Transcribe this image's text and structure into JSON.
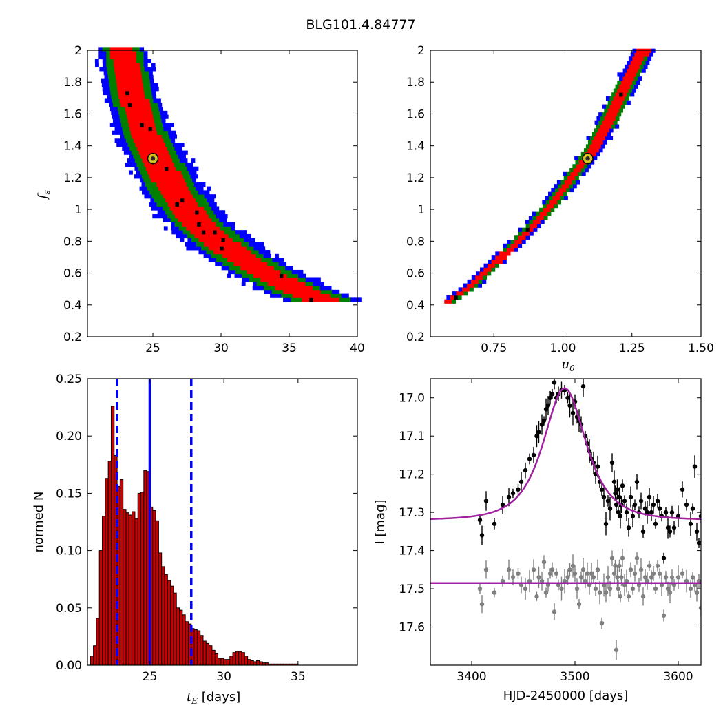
{
  "figure": {
    "title": "BLG101.4.84777"
  },
  "chart_data": [
    {
      "id": "fs-vs-tE",
      "type": "heatmap",
      "xlabel": "",
      "ylabel": "f_s",
      "ylabel_main": "f",
      "ylabel_sub": "s",
      "xlim": [
        20.2,
        40
      ],
      "ylim": [
        0.2,
        2.0
      ],
      "xticks": [
        25,
        30,
        35,
        40
      ],
      "yticks": [
        0.2,
        0.4,
        0.6,
        0.8,
        1.0,
        1.2,
        1.4,
        1.6,
        1.8,
        2.0
      ],
      "colors": {
        "outer": "#0000ff",
        "middle": "#008000",
        "inner": "#ff0000",
        "peak": "#000000"
      },
      "band_centerline": [
        [
          22.6,
          2.0
        ],
        [
          23.4,
          1.7
        ],
        [
          24.3,
          1.45
        ],
        [
          25.1,
          1.32
        ],
        [
          26.3,
          1.12
        ],
        [
          27.8,
          0.93
        ],
        [
          29.5,
          0.8
        ],
        [
          31.5,
          0.67
        ],
        [
          33.5,
          0.57
        ],
        [
          35.5,
          0.48
        ],
        [
          37.2,
          0.42
        ]
      ],
      "band_halfwidth": {
        "inner": 1.1,
        "middle": 1.7,
        "outer": 2.3
      },
      "best_fit": {
        "x": 25.0,
        "y": 1.32
      },
      "marker_color": "#d4c21e"
    },
    {
      "id": "fs-vs-u0",
      "type": "heatmap",
      "xlabel": "u_0",
      "xlabel_main": "u",
      "xlabel_sub": "0",
      "ylabel": "",
      "xlim": [
        0.52,
        1.5
      ],
      "ylim": [
        0.2,
        2.0
      ],
      "xticks": [
        0.75,
        1.0,
        1.25,
        1.5
      ],
      "xtick_labels": [
        "0.75",
        "1.00",
        "1.25",
        "1.50"
      ],
      "yticks": [
        0.2,
        0.4,
        0.6,
        0.8,
        1.0,
        1.2,
        1.4,
        1.6,
        1.8,
        2.0
      ],
      "colors": {
        "outer": "#0000ff",
        "middle": "#008000",
        "inner": "#ff0000",
        "peak": "#000000"
      },
      "band_centerline": [
        [
          0.58,
          0.41
        ],
        [
          0.65,
          0.49
        ],
        [
          0.72,
          0.6
        ],
        [
          0.8,
          0.74
        ],
        [
          0.88,
          0.88
        ],
        [
          0.96,
          1.04
        ],
        [
          1.04,
          1.22
        ],
        [
          1.1,
          1.36
        ],
        [
          1.16,
          1.55
        ],
        [
          1.22,
          1.76
        ],
        [
          1.29,
          2.0
        ]
      ],
      "band_halfwidth": {
        "inner": 0.017,
        "middle": 0.026,
        "outer": 0.035
      },
      "best_fit": {
        "x": 1.09,
        "y": 1.32
      },
      "marker_color": "#d4c21e"
    },
    {
      "id": "tE-histogram",
      "type": "bar",
      "xlabel": "t_E [days]",
      "xlabel_main": "t",
      "xlabel_sub": "E",
      "xlabel_rest": " [days]",
      "ylabel": "normed N",
      "xlim": [
        20.8,
        39
      ],
      "ylim": [
        0,
        0.25
      ],
      "xticks": [
        25,
        30,
        35
      ],
      "yticks": [
        0.0,
        0.05,
        0.1,
        0.15,
        0.2,
        0.25
      ],
      "ytick_labels": [
        "0.00",
        "0.05",
        "0.10",
        "0.15",
        "0.20",
        "0.25"
      ],
      "bin_start": 21.0,
      "bin_width": 0.2,
      "values": [
        0.008,
        0.017,
        0.041,
        0.1,
        0.13,
        0.163,
        0.178,
        0.226,
        0.183,
        0.156,
        0.162,
        0.136,
        0.133,
        0.131,
        0.134,
        0.128,
        0.15,
        0.151,
        0.17,
        0.169,
        0.138,
        0.135,
        0.126,
        0.098,
        0.086,
        0.079,
        0.074,
        0.069,
        0.063,
        0.05,
        0.048,
        0.044,
        0.038,
        0.036,
        0.032,
        0.031,
        0.03,
        0.026,
        0.021,
        0.019,
        0.017,
        0.013,
        0.01,
        0.006,
        0.006,
        0.005,
        0.005,
        0.008,
        0.011,
        0.012,
        0.012,
        0.011,
        0.008,
        0.005,
        0.004,
        0.003,
        0.004,
        0.003,
        0.002,
        0.002,
        0.001,
        0.001,
        0.001,
        0.001,
        0.001,
        0.001,
        0.001,
        0.001,
        0.001,
        0.001
      ],
      "bar_color": "#cc0000",
      "median": 25.0,
      "lower": 22.8,
      "upper": 27.8,
      "line_color": "#0000ff"
    },
    {
      "id": "lightcurve",
      "type": "scatter",
      "xlabel": "HJD-2450000 [days]",
      "ylabel": "I [mag]",
      "xlim": [
        3360,
        3622
      ],
      "ylim": [
        17.7,
        16.95
      ],
      "xticks": [
        3400,
        3500,
        3600
      ],
      "yticks": [
        17.0,
        17.1,
        17.2,
        17.3,
        17.4,
        17.5,
        17.6
      ],
      "ytick_labels": [
        "17.0",
        "17.1",
        "17.2",
        "17.3",
        "17.4",
        "17.5",
        "17.6"
      ],
      "model": {
        "baseline": 17.32,
        "peak": 16.975,
        "t0": 3490,
        "tE": 25,
        "u0": 1.09
      },
      "residual_baseline": 17.485,
      "model_color": "#a020a0",
      "data_color": "#000000",
      "residual_color": "#808080",
      "data": [
        [
          3408,
          17.32
        ],
        [
          3410,
          17.36
        ],
        [
          3414,
          17.27
        ],
        [
          3422,
          17.33
        ],
        [
          3430,
          17.28
        ],
        [
          3436,
          17.26
        ],
        [
          3440,
          17.25
        ],
        [
          3445,
          17.24
        ],
        [
          3448,
          17.22
        ],
        [
          3452,
          17.19
        ],
        [
          3456,
          17.16
        ],
        [
          3460,
          17.15
        ],
        [
          3463,
          17.1
        ],
        [
          3465,
          17.09
        ],
        [
          3468,
          17.07
        ],
        [
          3470,
          17.06
        ],
        [
          3472,
          17.03
        ],
        [
          3474,
          17.02
        ],
        [
          3476,
          17.0
        ],
        [
          3478,
          16.99
        ],
        [
          3480,
          16.96
        ],
        [
          3482,
          17.0
        ],
        [
          3484,
          16.99
        ],
        [
          3487,
          16.98
        ],
        [
          3490,
          16.98
        ],
        [
          3493,
          17.0
        ],
        [
          3495,
          17.02
        ],
        [
          3498,
          17.04
        ],
        [
          3500,
          17.01
        ],
        [
          3502,
          17.05
        ],
        [
          3504,
          17.06
        ],
        [
          3506,
          17.07
        ],
        [
          3508,
          16.97
        ],
        [
          3510,
          17.1
        ],
        [
          3512,
          17.12
        ],
        [
          3514,
          17.14
        ],
        [
          3516,
          17.16
        ],
        [
          3518,
          17.17
        ],
        [
          3520,
          17.2
        ],
        [
          3522,
          17.18
        ],
        [
          3524,
          17.22
        ],
        [
          3526,
          17.24
        ],
        [
          3528,
          17.26
        ],
        [
          3530,
          17.33
        ],
        [
          3532,
          17.27
        ],
        [
          3534,
          17.29
        ],
        [
          3536,
          17.17
        ],
        [
          3538,
          17.22
        ],
        [
          3539,
          17.25
        ],
        [
          3540,
          17.28
        ],
        [
          3541,
          17.24
        ],
        [
          3542,
          17.3
        ],
        [
          3543,
          17.26
        ],
        [
          3544,
          17.31
        ],
        [
          3545,
          17.28
        ],
        [
          3546,
          17.23
        ],
        [
          3548,
          17.27
        ],
        [
          3550,
          17.3
        ],
        [
          3552,
          17.34
        ],
        [
          3554,
          17.26
        ],
        [
          3556,
          17.31
        ],
        [
          3558,
          17.28
        ],
        [
          3560,
          17.22
        ],
        [
          3562,
          17.3
        ],
        [
          3564,
          17.27
        ],
        [
          3566,
          17.35
        ],
        [
          3568,
          17.29
        ],
        [
          3570,
          17.3
        ],
        [
          3572,
          17.26
        ],
        [
          3574,
          17.3
        ],
        [
          3576,
          17.28
        ],
        [
          3578,
          17.33
        ],
        [
          3580,
          17.27
        ],
        [
          3582,
          17.29
        ],
        [
          3584,
          17.31
        ],
        [
          3586,
          17.42
        ],
        [
          3588,
          17.3
        ],
        [
          3590,
          17.34
        ],
        [
          3592,
          17.35
        ],
        [
          3594,
          17.3
        ],
        [
          3596,
          17.34
        ],
        [
          3600,
          17.31
        ],
        [
          3604,
          17.24
        ],
        [
          3608,
          17.28
        ],
        [
          3612,
          17.33
        ],
        [
          3614,
          17.29
        ],
        [
          3616,
          17.18
        ],
        [
          3618,
          17.35
        ],
        [
          3620,
          17.38
        ],
        [
          3622,
          17.31
        ]
      ],
      "residuals": [
        [
          3408,
          17.5
        ],
        [
          3410,
          17.54
        ],
        [
          3414,
          17.45
        ],
        [
          3422,
          17.51
        ],
        [
          3430,
          17.48
        ],
        [
          3436,
          17.45
        ],
        [
          3440,
          17.47
        ],
        [
          3445,
          17.46
        ],
        [
          3448,
          17.49
        ],
        [
          3452,
          17.5
        ],
        [
          3456,
          17.48
        ],
        [
          3460,
          17.45
        ],
        [
          3463,
          17.52
        ],
        [
          3465,
          17.47
        ],
        [
          3468,
          17.48
        ],
        [
          3470,
          17.43
        ],
        [
          3472,
          17.51
        ],
        [
          3474,
          17.49
        ],
        [
          3476,
          17.46
        ],
        [
          3478,
          17.45
        ],
        [
          3480,
          17.56
        ],
        [
          3482,
          17.46
        ],
        [
          3484,
          17.49
        ],
        [
          3487,
          17.5
        ],
        [
          3490,
          17.48
        ],
        [
          3493,
          17.47
        ],
        [
          3495,
          17.45
        ],
        [
          3498,
          17.44
        ],
        [
          3500,
          17.46
        ],
        [
          3502,
          17.5
        ],
        [
          3504,
          17.54
        ],
        [
          3506,
          17.47
        ],
        [
          3508,
          17.45
        ],
        [
          3510,
          17.48
        ],
        [
          3512,
          17.46
        ],
        [
          3514,
          17.49
        ],
        [
          3516,
          17.46
        ],
        [
          3518,
          17.47
        ],
        [
          3520,
          17.5
        ],
        [
          3522,
          17.45
        ],
        [
          3524,
          17.51
        ],
        [
          3526,
          17.59
        ],
        [
          3528,
          17.49
        ],
        [
          3530,
          17.51
        ],
        [
          3532,
          17.47
        ],
        [
          3534,
          17.5
        ],
        [
          3536,
          17.42
        ],
        [
          3538,
          17.46
        ],
        [
          3539,
          17.44
        ],
        [
          3540,
          17.66
        ],
        [
          3541,
          17.47
        ],
        [
          3542,
          17.5
        ],
        [
          3543,
          17.44
        ],
        [
          3544,
          17.52
        ],
        [
          3545,
          17.47
        ],
        [
          3546,
          17.42
        ],
        [
          3548,
          17.49
        ],
        [
          3550,
          17.48
        ],
        [
          3552,
          17.52
        ],
        [
          3554,
          17.45
        ],
        [
          3556,
          17.5
        ],
        [
          3558,
          17.46
        ],
        [
          3560,
          17.42
        ],
        [
          3562,
          17.49
        ],
        [
          3564,
          17.45
        ],
        [
          3566,
          17.52
        ],
        [
          3568,
          17.47
        ],
        [
          3570,
          17.48
        ],
        [
          3572,
          17.44
        ],
        [
          3574,
          17.47
        ],
        [
          3576,
          17.46
        ],
        [
          3578,
          17.5
        ],
        [
          3580,
          17.44
        ],
        [
          3582,
          17.46
        ],
        [
          3584,
          17.49
        ],
        [
          3586,
          17.57
        ],
        [
          3588,
          17.47
        ],
        [
          3590,
          17.5
        ],
        [
          3592,
          17.51
        ],
        [
          3594,
          17.47
        ],
        [
          3596,
          17.49
        ],
        [
          3600,
          17.47
        ],
        [
          3604,
          17.46
        ],
        [
          3608,
          17.48
        ],
        [
          3612,
          17.5
        ],
        [
          3614,
          17.47
        ],
        [
          3616,
          17.49
        ],
        [
          3618,
          17.51
        ],
        [
          3620,
          17.48
        ],
        [
          3622,
          17.55
        ]
      ]
    }
  ]
}
